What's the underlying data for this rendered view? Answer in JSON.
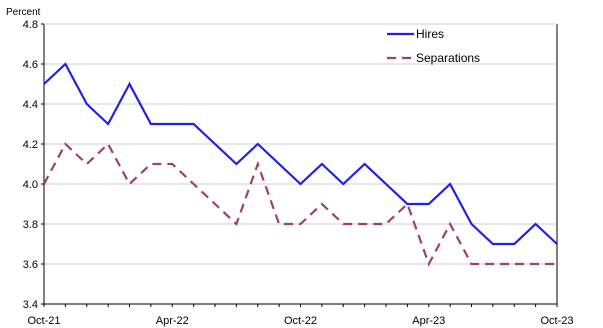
{
  "chart_data": {
    "type": "line",
    "ylabel": "Percent",
    "ylim": [
      3.4,
      4.8
    ],
    "yticks": [
      "3.4",
      "3.6",
      "3.8",
      "4.0",
      "4.2",
      "4.4",
      "4.6",
      "4.8"
    ],
    "x": [
      "Oct-21",
      "Nov-21",
      "Dec-21",
      "Jan-22",
      "Feb-22",
      "Mar-22",
      "Apr-22",
      "May-22",
      "Jun-22",
      "Jul-22",
      "Aug-22",
      "Sep-22",
      "Oct-22",
      "Nov-22",
      "Dec-22",
      "Jan-23",
      "Feb-23",
      "Mar-23",
      "Apr-23",
      "May-23",
      "Jun-23",
      "Jul-23",
      "Aug-23",
      "Sep-23",
      "Oct-23"
    ],
    "xticks": [
      "Oct-21",
      "Apr-22",
      "Oct-22",
      "Apr-23",
      "Oct-23"
    ],
    "grid": true,
    "legend_position": "top-right",
    "series": [
      {
        "name": "Hires",
        "color": "#1f1fe8",
        "dash": "solid",
        "values": [
          4.5,
          4.6,
          4.4,
          4.3,
          4.5,
          4.3,
          4.3,
          4.3,
          4.2,
          4.1,
          4.2,
          4.1,
          4.0,
          4.1,
          4.0,
          4.1,
          4.0,
          3.9,
          3.9,
          4.0,
          3.8,
          3.7,
          3.7,
          3.8,
          3.7
        ]
      },
      {
        "name": "Separations",
        "color": "#a0406a",
        "dash": "dashed",
        "values": [
          4.0,
          4.2,
          4.1,
          4.2,
          4.0,
          4.1,
          4.1,
          4.0,
          3.9,
          3.8,
          4.1,
          3.8,
          3.8,
          3.9,
          3.8,
          3.8,
          3.8,
          3.9,
          3.6,
          3.8,
          3.6,
          3.6,
          3.6,
          3.6,
          3.6
        ]
      }
    ]
  }
}
